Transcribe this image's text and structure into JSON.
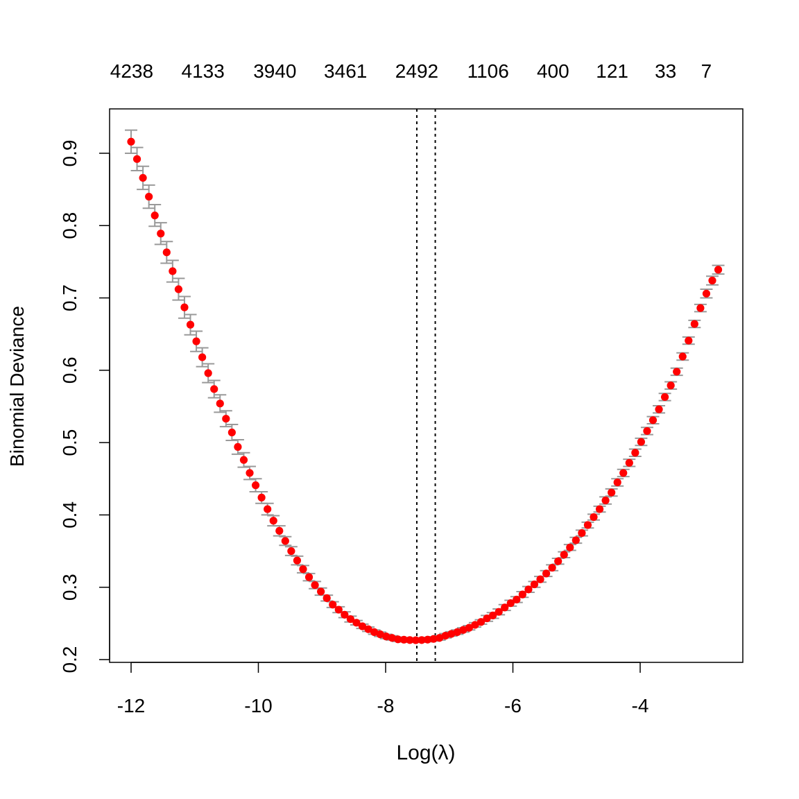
{
  "chart_data": {
    "type": "scatter",
    "title": "",
    "xlabel": "Log(λ)",
    "ylabel": "Binomial Deviance",
    "xlim": [
      -12.35,
      -2.4
    ],
    "ylim": [
      0.2,
      0.9
    ],
    "x_ticks": [
      -12,
      -10,
      -8,
      -6,
      -4
    ],
    "x_tick_labels": [
      "-12",
      "-10",
      "-8",
      "-6",
      "-4"
    ],
    "y_ticks": [
      0.2,
      0.3,
      0.4,
      0.5,
      0.6,
      0.7,
      0.8,
      0.9
    ],
    "y_tick_labels": [
      "0.2",
      "0.3",
      "0.4",
      "0.5",
      "0.6",
      "0.7",
      "0.8",
      "0.9"
    ],
    "top_axis": {
      "positions": [
        -11.99,
        -10.87,
        -9.74,
        -8.63,
        -7.51,
        -6.39,
        -5.37,
        -4.44,
        -3.6,
        -2.96
      ],
      "labels": [
        "4238",
        "4133",
        "3940",
        "3461",
        "2492",
        "1106",
        "400",
        "121",
        "33",
        "7"
      ]
    },
    "x_start": -12,
    "x_step": 0.0932,
    "values": [
      0.916,
      0.892,
      0.866,
      0.84,
      0.814,
      0.789,
      0.763,
      0.737,
      0.712,
      0.687,
      0.663,
      0.64,
      0.618,
      0.596,
      0.574,
      0.554,
      0.533,
      0.514,
      0.494,
      0.476,
      0.458,
      0.441,
      0.424,
      0.408,
      0.392,
      0.378,
      0.364,
      0.35,
      0.337,
      0.325,
      0.314,
      0.303,
      0.294,
      0.285,
      0.276,
      0.269,
      0.262,
      0.256,
      0.251,
      0.246,
      0.242,
      0.238,
      0.235,
      0.232,
      0.23,
      0.228,
      0.2275,
      0.227,
      0.2268,
      0.227,
      0.2276,
      0.2286,
      0.23,
      0.233,
      0.2355,
      0.238,
      0.241,
      0.244,
      0.248,
      0.252,
      0.257,
      0.261,
      0.266,
      0.272,
      0.278,
      0.283,
      0.29,
      0.297,
      0.304,
      0.311,
      0.319,
      0.327,
      0.336,
      0.345,
      0.355,
      0.365,
      0.375,
      0.386,
      0.397,
      0.408,
      0.42,
      0.431,
      0.445,
      0.458,
      0.472,
      0.486,
      0.501,
      0.516,
      0.531,
      0.546,
      0.563,
      0.579,
      0.598,
      0.619,
      0.641,
      0.664,
      0.686,
      0.706,
      0.724,
      0.739
    ],
    "se": [
      0.016,
      0.016,
      0.016,
      0.016,
      0.015,
      0.015,
      0.015,
      0.015,
      0.015,
      0.015,
      0.014,
      0.014,
      0.013,
      0.013,
      0.012,
      0.012,
      0.011,
      0.011,
      0.01,
      0.01,
      0.009,
      0.009,
      0.008,
      0.008,
      0.007,
      0.007,
      0.006,
      0.006,
      0.006,
      0.005,
      0.005,
      0.005,
      0.005,
      0.004,
      0.004,
      0.004,
      0.004,
      0.004,
      0.003,
      0.003,
      0.003,
      0.003,
      0.003,
      0.003,
      0.003,
      0.003,
      0.003,
      0.003,
      0.003,
      0.003,
      0.003,
      0.003,
      0.003,
      0.003,
      0.003,
      0.003,
      0.003,
      0.003,
      0.003,
      0.003,
      0.004,
      0.004,
      0.004,
      0.004,
      0.004,
      0.004,
      0.004,
      0.004,
      0.004,
      0.004,
      0.004,
      0.004,
      0.004,
      0.004,
      0.004,
      0.004,
      0.004,
      0.004,
      0.004,
      0.004,
      0.005,
      0.005,
      0.005,
      0.005,
      0.005,
      0.005,
      0.005,
      0.005,
      0.005,
      0.005,
      0.005,
      0.005,
      0.005,
      0.005,
      0.005,
      0.005,
      0.005,
      0.006,
      0.006,
      0.006
    ],
    "vlines": [
      -7.51,
      -7.22
    ],
    "colors": {
      "points": "#ff0000",
      "error_bars": "#999999",
      "axis": "#000000"
    },
    "grid": false,
    "legend": "none"
  }
}
